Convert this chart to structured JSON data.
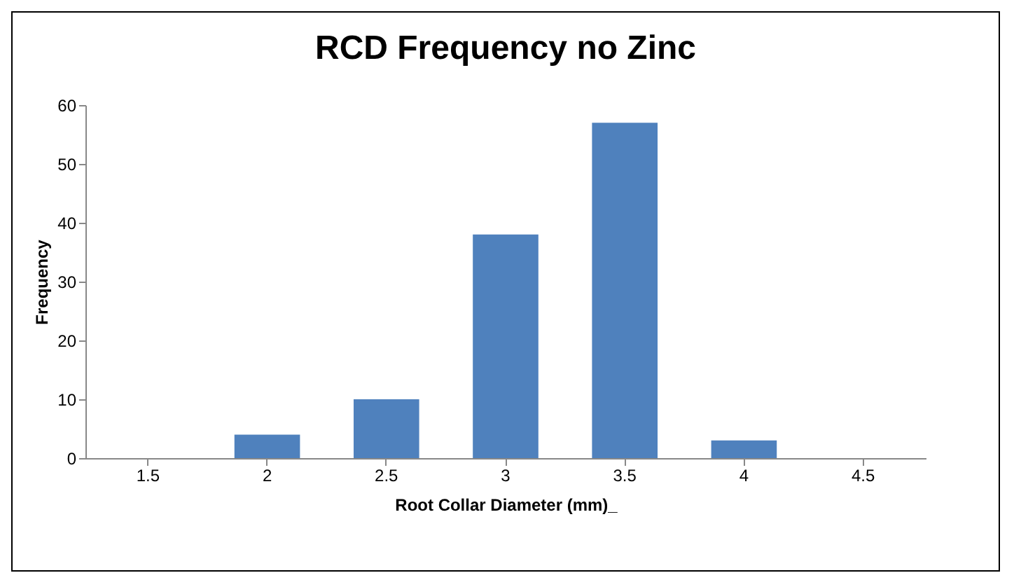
{
  "chart_data": {
    "type": "bar",
    "title": "RCD Frequency no Zinc",
    "xlabel": "Root Collar Diameter (mm)_",
    "ylabel": "Frequency",
    "categories": [
      "1.5",
      "2",
      "2.5",
      "3",
      "3.5",
      "4",
      "4.5"
    ],
    "values": [
      0,
      4,
      10,
      38,
      57,
      3,
      0
    ],
    "color": "#4f81bd",
    "ylim": [
      0,
      60
    ],
    "yticks": [
      0,
      10,
      20,
      30,
      40,
      50,
      60
    ],
    "grid": false
  }
}
